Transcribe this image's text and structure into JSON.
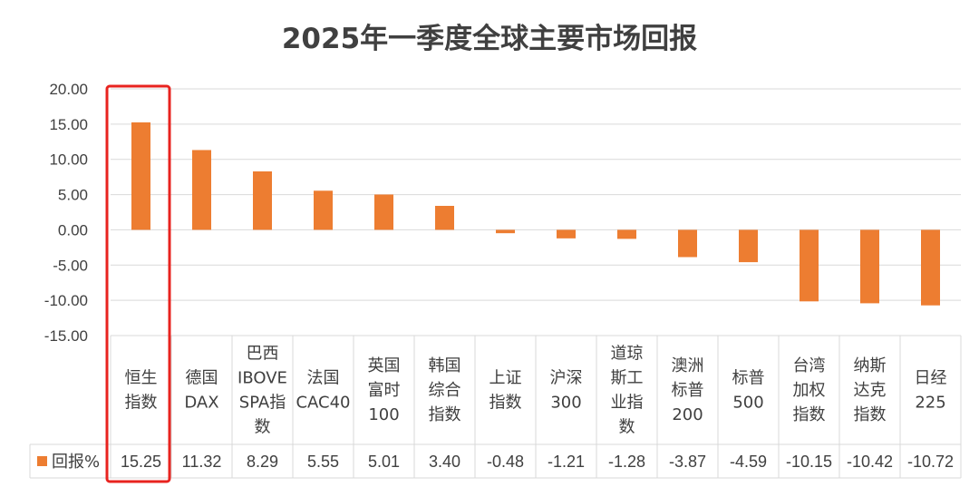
{
  "chart_data": {
    "type": "bar",
    "title": "2025年一季度全球主要市场回报",
    "series": [
      {
        "name": "回报%",
        "values": [
          15.25,
          11.32,
          8.29,
          5.55,
          5.01,
          3.4,
          -0.48,
          -1.21,
          -1.28,
          -3.87,
          -4.59,
          -10.15,
          -10.42,
          -10.72
        ],
        "labels": [
          "15.25",
          "11.32",
          "8.29",
          "5.55",
          "5.01",
          "3.40",
          "-0.48",
          "-1.21",
          "-1.28",
          "-3.87",
          "-4.59",
          "-10.15",
          "-10.42",
          "-10.72"
        ]
      }
    ],
    "categories": [
      [
        "恒生",
        "指数"
      ],
      [
        "德国",
        "DAX"
      ],
      [
        "巴西",
        "IBOVE",
        "SPA指",
        "数"
      ],
      [
        "法国",
        "CAC40"
      ],
      [
        "英国",
        "富时",
        "100"
      ],
      [
        "韩国",
        "综合",
        "指数"
      ],
      [
        "上证",
        "指数"
      ],
      [
        "沪深",
        "300"
      ],
      [
        "道琼",
        "斯工",
        "业指",
        "数"
      ],
      [
        "澳洲",
        "标普",
        "200"
      ],
      [
        "标普",
        "500"
      ],
      [
        "台湾",
        "加权",
        "指数"
      ],
      [
        "纳斯",
        "达克",
        "指数"
      ],
      [
        "日经",
        "225"
      ]
    ],
    "yticks": [
      "20.00",
      "15.00",
      "10.00",
      "5.00",
      "0.00",
      "-5.00",
      "-10.00",
      "-15.00"
    ],
    "ylim": [
      -15,
      20
    ],
    "grid": true,
    "legend": "bottom-left (data table)",
    "highlight_index": 0,
    "colors": {
      "bar": "#ED7D31",
      "highlight_box": "#E8231F",
      "grid": "#D9D9D9",
      "text": "#404040"
    }
  }
}
